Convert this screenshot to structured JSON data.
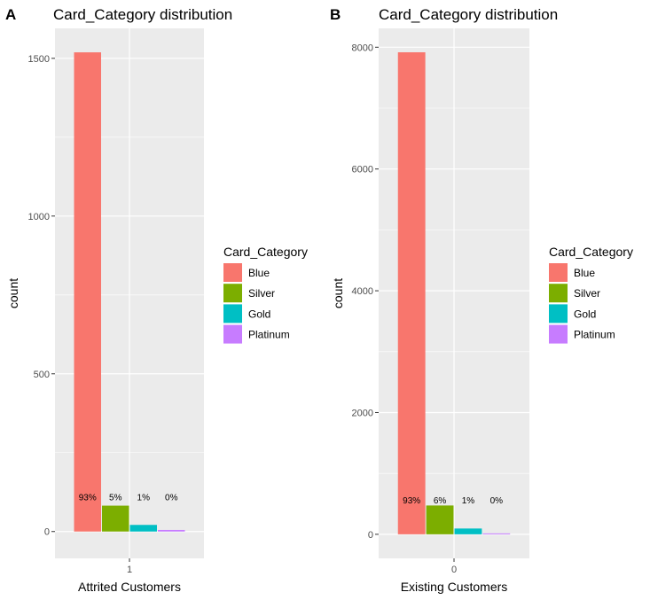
{
  "chart_data": [
    {
      "tag": "A",
      "type": "bar",
      "title": "Card_Category distribution",
      "xlabel": "Attrited Customers",
      "ylabel": "count",
      "x_tick": "1",
      "yticks": [
        0,
        500,
        1000,
        1500
      ],
      "ylim": [
        -85,
        1595
      ],
      "legend_title": "Card_Category",
      "legend_position": "right",
      "categories": [
        "Blue",
        "Silver",
        "Gold",
        "Platinum"
      ],
      "values": [
        1519,
        82,
        21,
        5
      ],
      "labels": [
        "93%",
        "5%",
        "1%",
        "0%"
      ],
      "colors": [
        "#F8766D",
        "#7CAE00",
        "#00BFC4",
        "#C77CFF"
      ]
    },
    {
      "tag": "B",
      "type": "bar",
      "title": "Card_Category distribution",
      "xlabel": "Existing Customers",
      "ylabel": "count",
      "x_tick": "0",
      "yticks": [
        0,
        2000,
        4000,
        6000,
        8000
      ],
      "ylim": [
        -395,
        8310
      ],
      "legend_title": "Card_Category",
      "legend_position": "right",
      "categories": [
        "Blue",
        "Silver",
        "Gold",
        "Platinum"
      ],
      "values": [
        7917,
        473,
        95,
        15
      ],
      "labels": [
        "93%",
        "6%",
        "1%",
        "0%"
      ],
      "colors": [
        "#F8766D",
        "#7CAE00",
        "#00BFC4",
        "#C77CFF"
      ]
    }
  ]
}
